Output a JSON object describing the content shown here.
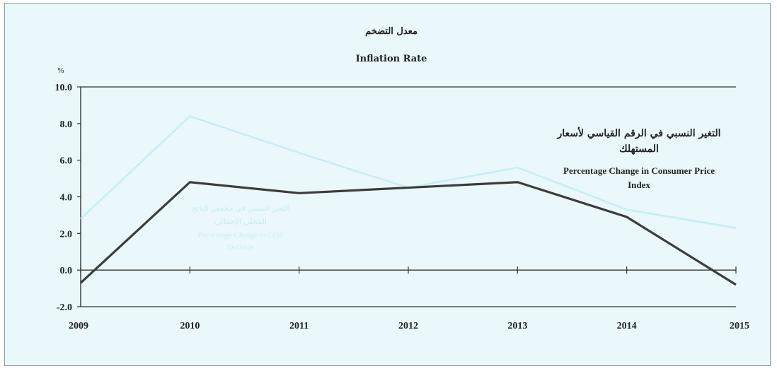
{
  "chart_data": {
    "type": "line",
    "title_ar": "معدل التضخم",
    "title_en": "Inflation Rate",
    "ylabel": "%",
    "x": [
      "2009",
      "2010",
      "2011",
      "2012",
      "2013",
      "2014",
      "2015"
    ],
    "y_ticks": [
      "10.0",
      "8.0",
      "6.0",
      "4.0",
      "2.0",
      "0.0",
      "-2.0"
    ],
    "ylim": [
      -2,
      10
    ],
    "grid": false,
    "series": [
      {
        "name_ar": "التغير النسبي في الرقم القياسي لأسعار المستهلك",
        "name_en": "Percentage Change in Consumer Price Index",
        "name_ar_lines": [
          "التغير النسبي في الرقم القياسي لأسعار",
          "المستهلك"
        ],
        "name_en_lines": [
          "Percentage Change in Consumer Price",
          "Index"
        ],
        "color": "#3c3c3c",
        "values": [
          -0.7,
          4.8,
          4.2,
          4.5,
          4.8,
          2.9,
          -0.8
        ]
      },
      {
        "name_ar": "التغير النسبي في مخفض الناتج المحلي الإجمالي",
        "name_en": "Percentage Change in GDP Deflator",
        "name_ar_lines": [
          "التغير النسبي في مخفض الناتج",
          "المحلي الإجمالي"
        ],
        "name_en_lines": [
          "Percentage Change in GDP",
          "Deflator"
        ],
        "color": "#c8eef3",
        "values": [
          2.8,
          8.4,
          6.4,
          4.5,
          5.6,
          3.3,
          2.3
        ]
      }
    ]
  },
  "colors": {
    "background": "#eaf8fb",
    "axis": "#333333"
  }
}
